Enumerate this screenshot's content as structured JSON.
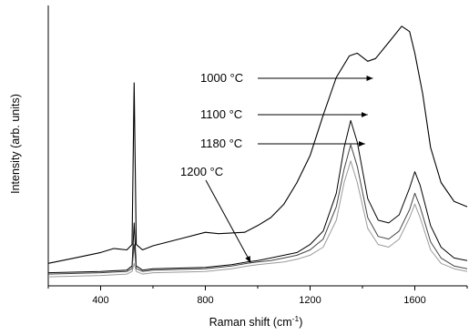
{
  "chart_data": {
    "type": "line",
    "xlabel": "Raman shift (cm",
    "xlabel_sup": "-1",
    "xlabel_tail": ")",
    "ylabel": "Intensity (arb. units)",
    "xlim": [
      200,
      1800
    ],
    "ylim": [
      0,
      100
    ],
    "x_ticks": [
      400,
      800,
      1200,
      1600
    ],
    "y_ticks_labeled": false,
    "grid": false,
    "series": [
      {
        "name": "1000 °C",
        "color": "#000000",
        "points": [
          [
            200,
            7
          ],
          [
            300,
            9
          ],
          [
            400,
            11
          ],
          [
            450,
            12.5
          ],
          [
            500,
            12
          ],
          [
            520,
            14
          ],
          [
            528,
            74
          ],
          [
            536,
            14
          ],
          [
            560,
            12
          ],
          [
            600,
            13.5
          ],
          [
            700,
            16
          ],
          [
            800,
            18.5
          ],
          [
            850,
            18
          ],
          [
            950,
            18.5
          ],
          [
            1000,
            21
          ],
          [
            1050,
            24
          ],
          [
            1100,
            29
          ],
          [
            1150,
            37
          ],
          [
            1200,
            47
          ],
          [
            1250,
            62
          ],
          [
            1300,
            76
          ],
          [
            1350,
            84
          ],
          [
            1380,
            85
          ],
          [
            1420,
            82
          ],
          [
            1450,
            83
          ],
          [
            1500,
            89
          ],
          [
            1550,
            95
          ],
          [
            1580,
            93
          ],
          [
            1600,
            85
          ],
          [
            1630,
            70
          ],
          [
            1660,
            50
          ],
          [
            1700,
            37
          ],
          [
            1750,
            30
          ],
          [
            1800,
            28
          ]
        ]
      },
      {
        "name": "1100 °C",
        "color": "#000000",
        "points": [
          [
            200,
            3.5
          ],
          [
            400,
            4
          ],
          [
            500,
            4.5
          ],
          [
            520,
            6
          ],
          [
            528,
            22
          ],
          [
            536,
            6
          ],
          [
            560,
            4.5
          ],
          [
            600,
            5
          ],
          [
            800,
            5.5
          ],
          [
            900,
            6.5
          ],
          [
            960,
            7.5
          ],
          [
            1000,
            8
          ],
          [
            1050,
            9
          ],
          [
            1100,
            10
          ],
          [
            1150,
            11
          ],
          [
            1200,
            14
          ],
          [
            1250,
            19
          ],
          [
            1300,
            33
          ],
          [
            1330,
            50
          ],
          [
            1355,
            60
          ],
          [
            1380,
            52
          ],
          [
            1420,
            31
          ],
          [
            1460,
            23
          ],
          [
            1500,
            22
          ],
          [
            1540,
            25
          ],
          [
            1580,
            35
          ],
          [
            1600,
            41
          ],
          [
            1620,
            36
          ],
          [
            1660,
            21
          ],
          [
            1700,
            13
          ],
          [
            1750,
            9
          ],
          [
            1800,
            8
          ]
        ]
      },
      {
        "name": "1180 °C",
        "color": "#444444",
        "points": [
          [
            200,
            3
          ],
          [
            400,
            3.5
          ],
          [
            500,
            4
          ],
          [
            520,
            5
          ],
          [
            528,
            14
          ],
          [
            536,
            5
          ],
          [
            560,
            4
          ],
          [
            600,
            4.5
          ],
          [
            800,
            5
          ],
          [
            900,
            6
          ],
          [
            960,
            7
          ],
          [
            1000,
            7.5
          ],
          [
            1050,
            8
          ],
          [
            1100,
            9
          ],
          [
            1150,
            10
          ],
          [
            1200,
            12
          ],
          [
            1250,
            16
          ],
          [
            1300,
            28
          ],
          [
            1330,
            42
          ],
          [
            1355,
            51
          ],
          [
            1380,
            43
          ],
          [
            1420,
            24
          ],
          [
            1460,
            17
          ],
          [
            1500,
            16
          ],
          [
            1540,
            19
          ],
          [
            1580,
            27
          ],
          [
            1600,
            33
          ],
          [
            1620,
            28
          ],
          [
            1660,
            15
          ],
          [
            1700,
            9
          ],
          [
            1750,
            6
          ],
          [
            1800,
            5
          ]
        ]
      },
      {
        "name": "1200 °C",
        "color": "#9a9a9a",
        "points": [
          [
            200,
            2
          ],
          [
            400,
            2.5
          ],
          [
            500,
            3
          ],
          [
            520,
            4
          ],
          [
            528,
            7
          ],
          [
            536,
            4
          ],
          [
            560,
            3
          ],
          [
            600,
            3.5
          ],
          [
            800,
            4
          ],
          [
            900,
            5
          ],
          [
            960,
            6
          ],
          [
            1000,
            6.5
          ],
          [
            1050,
            7
          ],
          [
            1100,
            7.5
          ],
          [
            1150,
            8.5
          ],
          [
            1200,
            10
          ],
          [
            1250,
            13
          ],
          [
            1300,
            23
          ],
          [
            1330,
            37
          ],
          [
            1355,
            45
          ],
          [
            1380,
            37
          ],
          [
            1420,
            20
          ],
          [
            1460,
            14
          ],
          [
            1500,
            13
          ],
          [
            1540,
            16
          ],
          [
            1580,
            24
          ],
          [
            1600,
            29
          ],
          [
            1620,
            24
          ],
          [
            1660,
            12
          ],
          [
            1700,
            7
          ],
          [
            1750,
            5
          ],
          [
            1800,
            4
          ]
        ]
      }
    ],
    "annotations": [
      {
        "label": "1000 °C",
        "target_series": 0,
        "target_x": 1440
      },
      {
        "label": "1100 °C",
        "target_series": 1,
        "target_x": 1420
      },
      {
        "label": "1180 °C",
        "target_series": 2,
        "target_x": 1410
      },
      {
        "label": "1200 °C",
        "target_series": 3,
        "target_x": 980
      }
    ]
  }
}
